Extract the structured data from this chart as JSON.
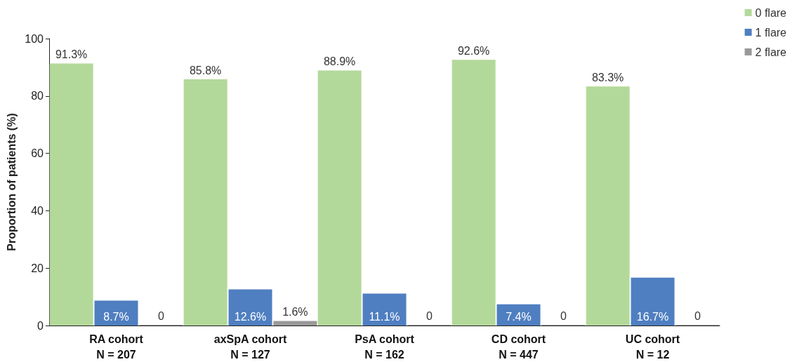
{
  "chart_data": {
    "type": "bar",
    "ylabel": "Proportion of patients (%)",
    "categories": [
      "RA cohort\nN = 207",
      "axSpA cohort\nN = 127",
      "PsA cohort\nN = 162",
      "CD cohort\nN = 447",
      "UC cohort\nN = 12"
    ],
    "series": [
      {
        "name": "0 flare",
        "color": "#b3d99a",
        "values": [
          91.3,
          85.8,
          88.9,
          92.6,
          83.3
        ],
        "value_labels": [
          "91.3%",
          "85.8%",
          "88.9%",
          "92.6%",
          "83.3%"
        ]
      },
      {
        "name": "1 flare",
        "color": "#4f7fc1",
        "values": [
          8.7,
          12.6,
          11.1,
          7.4,
          16.7
        ],
        "value_labels": [
          "8.7%",
          "12.6%",
          "11.1%",
          "7.4%",
          "16.7%"
        ]
      },
      {
        "name": "2 flare",
        "color": "#999999",
        "values": [
          0,
          1.6,
          0,
          0,
          0
        ],
        "value_labels": [
          "0",
          "1.6%",
          "0",
          "0",
          "0"
        ]
      }
    ],
    "ylim": [
      0,
      100
    ],
    "yticks": [
      0,
      20,
      40,
      60,
      80,
      100
    ],
    "grid": false,
    "legend": "top right"
  }
}
